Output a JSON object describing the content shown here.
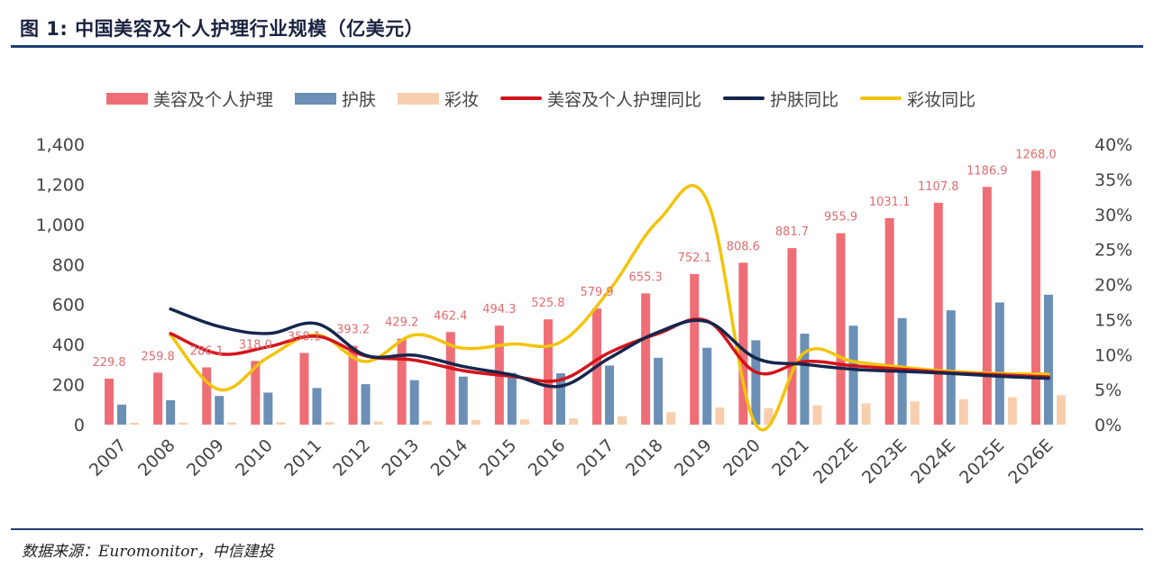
{
  "figure_title": "图 1: 中国美容及个人护理行业规模（亿美元）",
  "source_note": "数据来源：Euromonitor，中信建投",
  "colors": {
    "beauty_bar": "#ef6e76",
    "skincare_bar": "#6b8fb5",
    "makeup_bar": "#f7cfae",
    "beauty_line": "#d3141c",
    "skincare_line": "#15264d",
    "makeup_line": "#f2c40c",
    "axis_text": "#444444",
    "label_text": "#e06c70"
  },
  "chart_data": {
    "type": "bar+line",
    "categories": [
      "2007",
      "2008",
      "2009",
      "2010",
      "2011",
      "2012",
      "2013",
      "2014",
      "2015",
      "2016",
      "2017",
      "2018",
      "2019",
      "2020",
      "2021",
      "2022E",
      "2023E",
      "2024E",
      "2025E",
      "2026E"
    ],
    "left_axis": {
      "min": 0,
      "max": 1400,
      "ticks": [
        0,
        200,
        400,
        600,
        800,
        1000,
        1200,
        1400
      ],
      "tick_labels": [
        "0",
        "200",
        "400",
        "600",
        "800",
        "1,000",
        "1,200",
        "1,400"
      ]
    },
    "right_axis": {
      "min": 0,
      "max": 40,
      "ticks": [
        0,
        5,
        10,
        15,
        20,
        25,
        30,
        35,
        40
      ],
      "tick_labels": [
        "0%",
        "5%",
        "10%",
        "15%",
        "20%",
        "25%",
        "30%",
        "35%",
        "40%"
      ]
    },
    "bar_series": [
      {
        "name": "美容及个人护理",
        "values": [
          229.8,
          259.8,
          286.1,
          318.0,
          358.1,
          393.2,
          429.2,
          462.4,
          494.3,
          525.8,
          579.9,
          655.3,
          752.1,
          808.6,
          881.7,
          955.9,
          1031.1,
          1107.8,
          1186.9,
          1268.0
        ],
        "labels": [
          "229.8",
          "259.8",
          "286.1",
          "318.0",
          "358.1",
          "393.2",
          "429.2",
          "462.4",
          "494.3",
          "525.8",
          "579.9",
          "655.3",
          "752.1",
          "808.6",
          "881.7",
          "955.9",
          "1031.1",
          "1107.8",
          "1186.9",
          "1268.0"
        ]
      },
      {
        "name": "护肤",
        "values": [
          100,
          122,
          143,
          160,
          183,
          202,
          222,
          240,
          258,
          256,
          295,
          334,
          384,
          421,
          454,
          494,
          532,
          571,
          610,
          649
        ]
      },
      {
        "name": "彩妆",
        "values": [
          9,
          10,
          11,
          12,
          13,
          15,
          18,
          22,
          26,
          31,
          42,
          62,
          86,
          82,
          96,
          106,
          116,
          127,
          137,
          147
        ]
      }
    ],
    "line_series": [
      {
        "name": "美容及个人护理同比",
        "values": [
          null,
          13.0,
          10.1,
          11.1,
          12.6,
          9.8,
          9.2,
          7.7,
          6.9,
          6.4,
          10.3,
          13.0,
          14.8,
          7.5,
          9.0,
          8.4,
          7.9,
          7.4,
          7.1,
          6.8
        ]
      },
      {
        "name": "护肤同比",
        "values": [
          null,
          16.5,
          14.0,
          13.0,
          14.4,
          9.9,
          9.9,
          8.3,
          7.1,
          5.5,
          9.5,
          13.2,
          14.7,
          9.5,
          8.6,
          7.9,
          7.6,
          7.3,
          6.9,
          6.6
        ]
      },
      {
        "name": "彩妆同比",
        "values": [
          null,
          12.8,
          5.0,
          9.6,
          12.8,
          9.0,
          12.8,
          10.9,
          11.5,
          11.8,
          19.2,
          29.1,
          32.0,
          0.0,
          10.3,
          9.0,
          8.2,
          7.6,
          7.3,
          7.2
        ]
      }
    ],
    "legend_position": "top",
    "grid": false
  }
}
